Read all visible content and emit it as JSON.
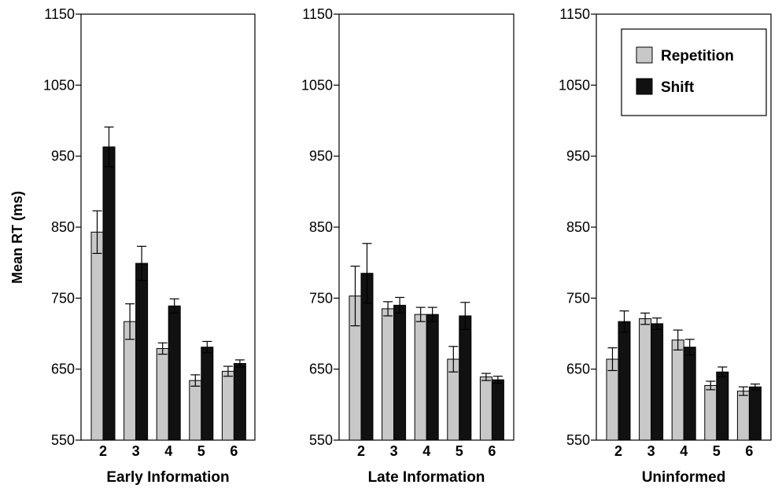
{
  "chart_data": {
    "type": "bar",
    "ylabel": "Mean RT (ms)",
    "ylim": [
      550,
      1150
    ],
    "yticks": [
      550,
      650,
      750,
      850,
      950,
      1050,
      1150
    ],
    "legend": {
      "placement": "top-right of third panel",
      "entries": [
        {
          "name": "Repetition",
          "color": "#c8c8c8"
        },
        {
          "name": "Shift",
          "color": "#111111"
        }
      ]
    },
    "panels": [
      {
        "xlabel": "Early Information",
        "categories": [
          "2",
          "3",
          "4",
          "5",
          "6"
        ],
        "series": [
          {
            "name": "Repetition",
            "values": [
              843,
              717,
              679,
              634,
              647
            ],
            "errors": [
              30,
              25,
              8,
              8,
              7
            ]
          },
          {
            "name": "Shift",
            "values": [
              963,
              799,
              739,
              681,
              658
            ],
            "errors": [
              28,
              24,
              10,
              8,
              5
            ]
          }
        ]
      },
      {
        "xlabel": "Late Information",
        "categories": [
          "2",
          "3",
          "4",
          "5",
          "6"
        ],
        "series": [
          {
            "name": "Repetition",
            "values": [
              753,
              735,
              727,
              664,
              639
            ],
            "errors": [
              42,
              10,
              10,
              18,
              5
            ]
          },
          {
            "name": "Shift",
            "values": [
              785,
              740,
              727,
              725,
              635
            ],
            "errors": [
              42,
              11,
              10,
              19,
              5
            ]
          }
        ]
      },
      {
        "xlabel": "Uninformed",
        "categories": [
          "2",
          "3",
          "4",
          "5",
          "6"
        ],
        "series": [
          {
            "name": "Repetition",
            "values": [
              664,
              721,
              691,
              627,
              619
            ],
            "errors": [
              16,
              8,
              14,
              6,
              6
            ]
          },
          {
            "name": "Shift",
            "values": [
              717,
              714,
              681,
              646,
              625
            ],
            "errors": [
              15,
              8,
              11,
              7,
              4
            ]
          }
        ]
      }
    ]
  }
}
